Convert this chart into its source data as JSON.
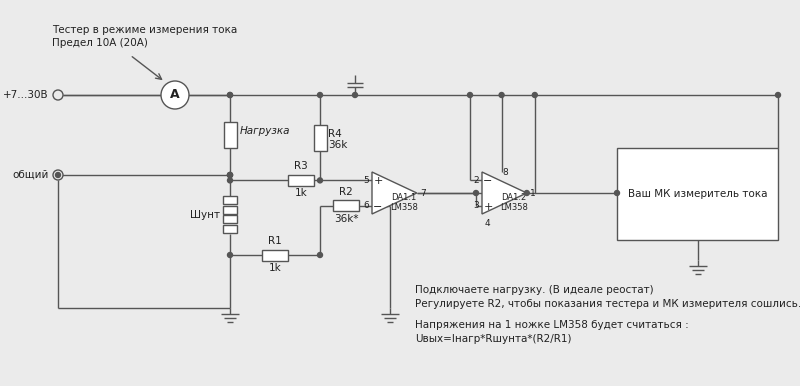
{
  "bg_color": "#ebebeb",
  "line_color": "#555555",
  "text_color": "#222222",
  "title_line1": "Тестер в режиме измерения тока",
  "title_line2": "Предел 10А (20А)",
  "label_plus": "+7...30В",
  "label_common": "общий",
  "label_shunt": "Шунт",
  "label_load": "Нагрузка",
  "label_R1": "R1",
  "label_R1v": "1k",
  "label_R2": "R2",
  "label_R2v": "36k*",
  "label_R3": "R3",
  "label_R3v": "1k",
  "label_R4": "R4",
  "label_R4v": "36k",
  "label_DA1": "DA1.1",
  "label_DA1b": "LM358",
  "label_DA2": "DA1.2",
  "label_DA2b": "LM358",
  "label_mk": "Ваш МК измеритель тока",
  "note1": "Подключаете нагрузку. (В идеале реостат)",
  "note2": "Регулируете R2, чтобы показания тестера и МК измерителя сошлись.",
  "note3": "Напряжения на 1 ножке LM358 будет считаться :",
  "note4": "Uвых=Iнагр*Rшунта*(R2/R1)"
}
